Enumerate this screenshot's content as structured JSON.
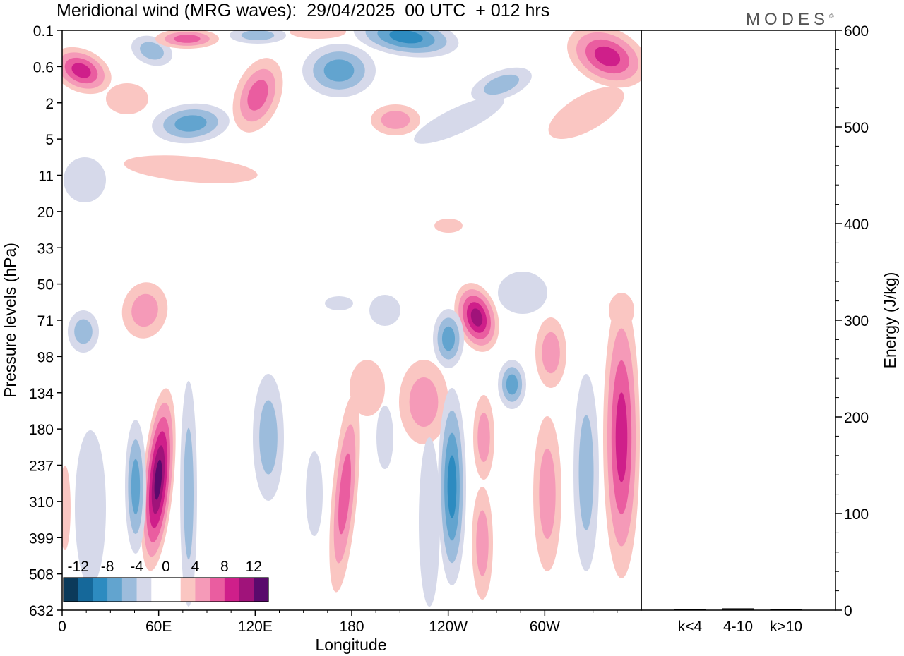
{
  "title": "Meridional wind (MRG waves):  29/04/2025  00 UTC  + 012 hrs",
  "logo": "MODES",
  "logo_mark": "©",
  "chart_data": [
    {
      "type": "heatmap",
      "title": "Meridional wind (MRG waves):  29/04/2025  00 UTC  + 012 hrs",
      "xlabel": "Longitude",
      "ylabel": "Pressure levels (hPa)",
      "x_ticks": [
        "0",
        "60E",
        "120E",
        "180",
        "120W",
        "60W"
      ],
      "y_ticks": [
        "0.1",
        "0.6",
        "2",
        "5",
        "11",
        "20",
        "33",
        "50",
        "71",
        "98",
        "134",
        "180",
        "237",
        "310",
        "399",
        "508",
        "632"
      ],
      "colorbar": {
        "labels": [
          "-12",
          "-8",
          "-4",
          "0",
          "4",
          "8",
          "12"
        ],
        "colors": [
          "#0b3a5a",
          "#15689a",
          "#2d8bc0",
          "#62a4cf",
          "#9cbcdc",
          "#d6d9ea",
          "#ffffff",
          "#ffffff",
          "#fac6c2",
          "#f59ab8",
          "#ea5da0",
          "#cf1f8a",
          "#a0137a",
          "#5a0a6c"
        ]
      },
      "features": [
        {
          "type": "negative",
          "lon": 200,
          "pressure": 0.1,
          "value": -12
        },
        {
          "type": "negative",
          "lon": 172,
          "pressure": 0.6,
          "value": -8
        },
        {
          "type": "negative",
          "lon": 70,
          "pressure": 3,
          "value": -6
        },
        {
          "type": "positive",
          "lon": 8,
          "pressure": 0.6,
          "value": 12
        },
        {
          "type": "positive",
          "lon": 348,
          "pressure": 0.3,
          "value": 10
        },
        {
          "type": "positive",
          "lon": 61,
          "pressure": 250,
          "value": 14
        },
        {
          "type": "negative",
          "lon": 238,
          "pressure": 240,
          "value": -10
        },
        {
          "type": "positive",
          "lon": 252,
          "pressure": 71,
          "value": 12
        },
        {
          "type": "positive",
          "lon": 355,
          "pressure": 180,
          "value": 10
        },
        {
          "type": "negative",
          "lon": 15,
          "pressure": 71,
          "value": -5
        },
        {
          "type": "negative",
          "lon": 270,
          "pressure": 125,
          "value": -8
        }
      ]
    },
    {
      "type": "bar",
      "categories": [
        "k<4",
        "4-10",
        "k>10"
      ],
      "values": [
        0.5,
        1.5,
        0.5
      ],
      "ylabel": "Energy (J/kg)",
      "ylim": [
        0,
        600
      ],
      "y_ticks": [
        "0",
        "100",
        "200",
        "300",
        "400",
        "500",
        "600"
      ]
    }
  ]
}
